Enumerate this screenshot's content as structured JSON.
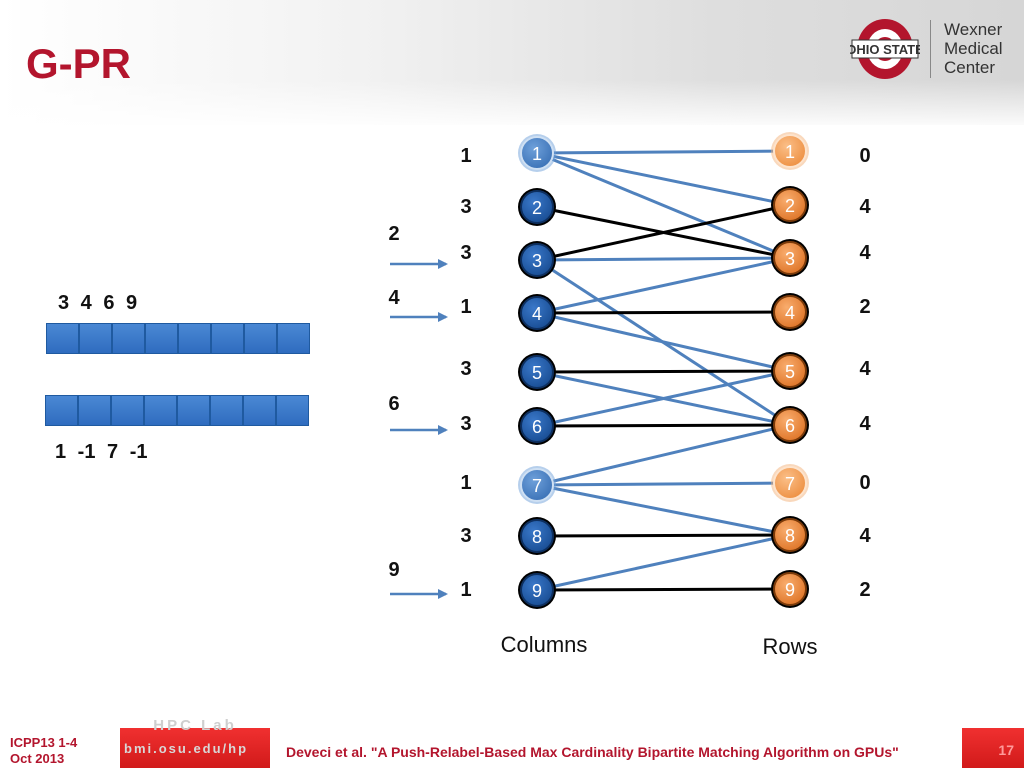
{
  "slide": {
    "title": "G-PR"
  },
  "logo": {
    "mark": "OHIO STATE",
    "line1": "Wexner",
    "line2": "Medical",
    "line3": "Center"
  },
  "arrays": {
    "top_labels": "3  4  6  9",
    "top_cells": 8,
    "bottom_labels": "1  -1  7  -1",
    "bottom_cells": 8
  },
  "graph": {
    "columns_label": "Columns",
    "rows_label": "Rows",
    "columns": [
      {
        "id": "1",
        "left_value": "1",
        "style": "light"
      },
      {
        "id": "2",
        "left_value": "3",
        "style": "dark"
      },
      {
        "id": "3",
        "left_value": "3",
        "style": "dark"
      },
      {
        "id": "4",
        "left_value": "1",
        "style": "dark"
      },
      {
        "id": "5",
        "left_value": "3",
        "style": "dark"
      },
      {
        "id": "6",
        "left_value": "3",
        "style": "dark"
      },
      {
        "id": "7",
        "left_value": "1",
        "style": "light"
      },
      {
        "id": "8",
        "left_value": "3",
        "style": "dark"
      },
      {
        "id": "9",
        "left_value": "1",
        "style": "dark"
      }
    ],
    "rows": [
      {
        "id": "1",
        "right_value": "0",
        "style": "light"
      },
      {
        "id": "2",
        "right_value": "4",
        "style": "dark"
      },
      {
        "id": "3",
        "right_value": "4",
        "style": "dark"
      },
      {
        "id": "4",
        "right_value": "2",
        "style": "dark"
      },
      {
        "id": "5",
        "right_value": "4",
        "style": "dark"
      },
      {
        "id": "6",
        "right_value": "4",
        "style": "dark"
      },
      {
        "id": "7",
        "right_value": "0",
        "style": "light"
      },
      {
        "id": "8",
        "right_value": "4",
        "style": "dark"
      },
      {
        "id": "9",
        "right_value": "2",
        "style": "dark"
      }
    ],
    "arrows": [
      {
        "label": "2",
        "column": 3
      },
      {
        "label": "4",
        "column": 4
      },
      {
        "label": "6",
        "column": 6
      },
      {
        "label": "9",
        "column": 9
      }
    ],
    "edges": [
      {
        "from": 1,
        "to": 1,
        "kind": "blue"
      },
      {
        "from": 1,
        "to": 2,
        "kind": "blue"
      },
      {
        "from": 1,
        "to": 3,
        "kind": "blue"
      },
      {
        "from": 2,
        "to": 3,
        "kind": "black"
      },
      {
        "from": 3,
        "to": 2,
        "kind": "black"
      },
      {
        "from": 3,
        "to": 3,
        "kind": "blue"
      },
      {
        "from": 3,
        "to": 6,
        "kind": "blue"
      },
      {
        "from": 4,
        "to": 3,
        "kind": "blue"
      },
      {
        "from": 4,
        "to": 4,
        "kind": "black"
      },
      {
        "from": 4,
        "to": 5,
        "kind": "blue"
      },
      {
        "from": 5,
        "to": 5,
        "kind": "black"
      },
      {
        "from": 5,
        "to": 6,
        "kind": "blue"
      },
      {
        "from": 6,
        "to": 5,
        "kind": "blue"
      },
      {
        "from": 6,
        "to": 6,
        "kind": "black"
      },
      {
        "from": 7,
        "to": 6,
        "kind": "blue"
      },
      {
        "from": 7,
        "to": 7,
        "kind": "blue"
      },
      {
        "from": 7,
        "to": 8,
        "kind": "blue"
      },
      {
        "from": 8,
        "to": 8,
        "kind": "black"
      },
      {
        "from": 9,
        "to": 8,
        "kind": "blue"
      },
      {
        "from": 9,
        "to": 9,
        "kind": "black"
      }
    ],
    "colors": {
      "blue_edge": "#4f81bd",
      "black_edge": "#000000",
      "column_node": "#1f5aa6",
      "column_node_light": "#4f86c6",
      "row_node": "#f79646",
      "row_node_light": "#f7a25c"
    }
  },
  "footer": {
    "conference_line1": "ICPP13 1-4",
    "conference_line2": "Oct 2013",
    "lab_name": "HPC Lab",
    "lab_url": "bmi.osu.edu/hp",
    "citation": "Deveci et al. \"A Push-Relabel-Based Max Cardinality Bipartite Matching Algorithm on GPUs\"",
    "page_number": "17"
  }
}
